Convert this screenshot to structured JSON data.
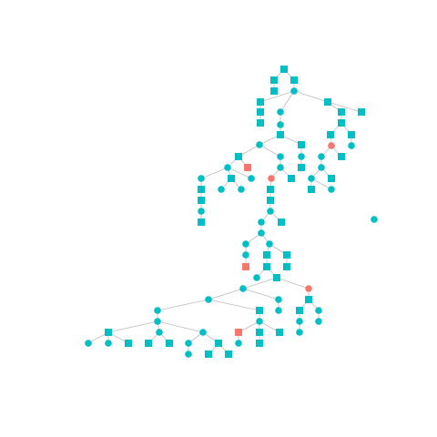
{
  "colors": {
    "primary": "#00BFC4",
    "highlight": "#F8766D",
    "edge": "#BDBDBD",
    "background": "#FFFFFF"
  },
  "node_shapes": [
    "square",
    "circle"
  ],
  "node_count": 114,
  "isolated_node_count": 1,
  "highlighted_node_count": 6
}
